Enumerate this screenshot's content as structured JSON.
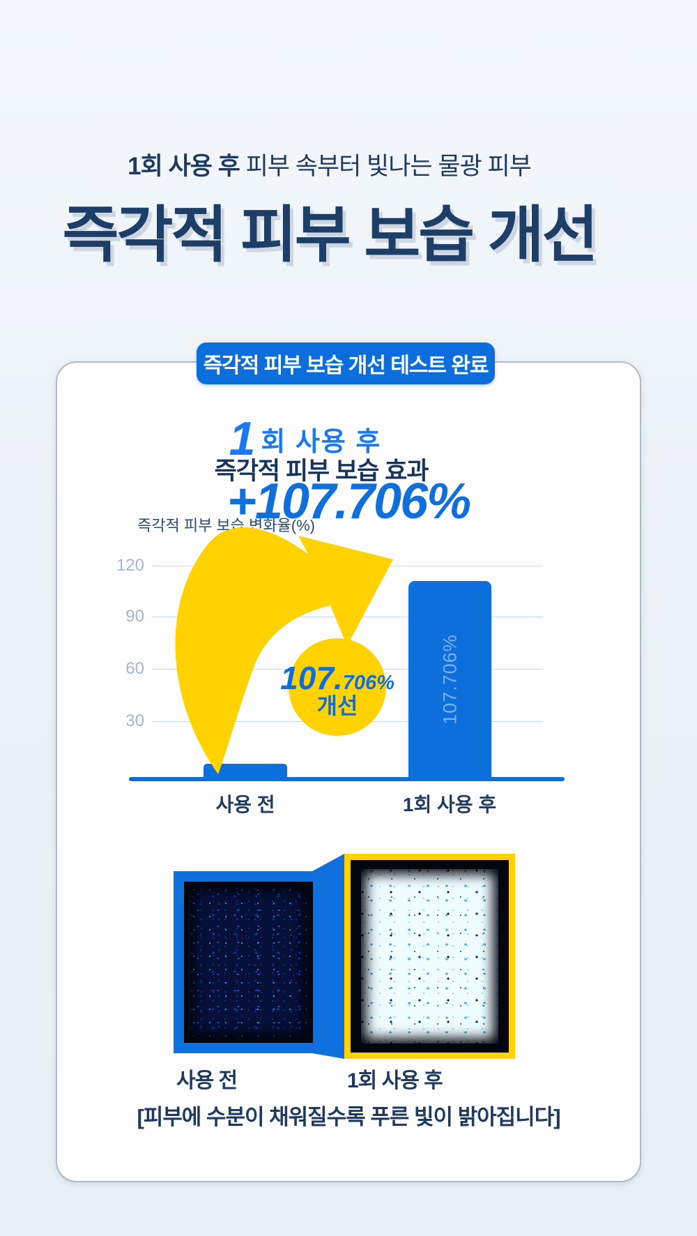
{
  "header": {
    "subtitle_strong": "1회 사용 후",
    "subtitle_rest": " 피부 속부터 빛나는 물광 피부",
    "title": "즉각적 피부 보습 개선"
  },
  "badge": {
    "label": "즉각적 피부 보습 개선 테스트 완료"
  },
  "result": {
    "count_digit": "1",
    "count_suffix": "회 사용 후",
    "effect_label": "즉각적 피부 보습 효과",
    "effect_value": "+107.706%"
  },
  "improvement_bubble": {
    "value_main": "107.",
    "value_frac": "706%",
    "label": "개선"
  },
  "chart_data": {
    "type": "bar",
    "title": "즉각적 피부 보습 변화율(%)",
    "categories": [
      "사용 전",
      "1회 사용 후"
    ],
    "values": [
      2,
      107.706
    ],
    "bar_value_label": "107.706%",
    "yticks": [
      120,
      90,
      60,
      30
    ],
    "ylim": [
      0,
      130
    ],
    "grid": true,
    "legend": false,
    "bar_color": "#0d6fdb"
  },
  "comparison": {
    "before_label": "사용 전",
    "after_label": "1회 사용 후",
    "caption": "[피부에 수분이 채워질수록 푸른 빛이 밝아집니다]"
  },
  "colors": {
    "accent_blue": "#0b6edc",
    "accent_yellow": "#ffd200",
    "navy_text": "#1d3e66",
    "page_bg": "#edf2f8",
    "grid_line": "#c9d7e7"
  }
}
